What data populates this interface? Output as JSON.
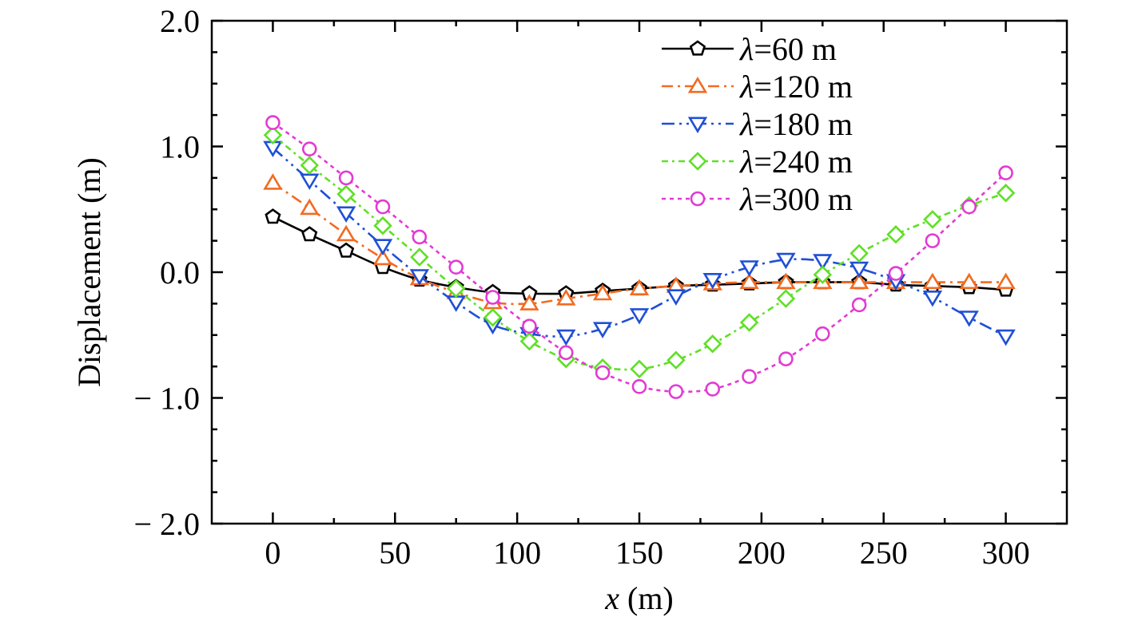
{
  "chart_data": {
    "type": "line",
    "title": "",
    "xlabel_var": "x",
    "xlabel_unit": " (m)",
    "ylabel": "Displacement (m)",
    "xlim": [
      -25,
      325
    ],
    "ylim": [
      -2.0,
      2.0
    ],
    "x_ticks": [
      0,
      50,
      100,
      150,
      200,
      250,
      300
    ],
    "x_tick_labels": [
      "0",
      "50",
      "100",
      "150",
      "200",
      "250",
      "300"
    ],
    "y_ticks": [
      -2.0,
      -1.0,
      0.0,
      1.0,
      2.0
    ],
    "y_tick_labels": [
      "− 2.0",
      "− 1.0",
      "0.0",
      "1.0",
      "2.0"
    ],
    "grid": false,
    "legend_position": "top-right",
    "x": [
      0,
      15,
      30,
      45,
      60,
      75,
      90,
      105,
      120,
      135,
      150,
      165,
      180,
      195,
      210,
      225,
      240,
      255,
      270,
      285,
      300
    ],
    "series": [
      {
        "name": "λ=60 m",
        "legend_symbol": "λ",
        "legend_value": "=60 m",
        "color": "#000000",
        "marker": "pentagon",
        "dash": "",
        "values": [
          0.44,
          0.3,
          0.17,
          0.04,
          -0.06,
          -0.12,
          -0.16,
          -0.17,
          -0.17,
          -0.15,
          -0.13,
          -0.11,
          -0.1,
          -0.09,
          -0.08,
          -0.08,
          -0.08,
          -0.1,
          -0.11,
          -0.12,
          -0.14
        ]
      },
      {
        "name": "λ=120 m",
        "legend_symbol": "λ",
        "legend_value": "=120 m",
        "color": "#f26b21",
        "marker": "triangle-up",
        "dash": "14,6,3,6",
        "values": [
          0.71,
          0.51,
          0.3,
          0.11,
          -0.05,
          -0.16,
          -0.24,
          -0.25,
          -0.21,
          -0.17,
          -0.13,
          -0.11,
          -0.09,
          -0.08,
          -0.08,
          -0.08,
          -0.08,
          -0.08,
          -0.08,
          -0.08,
          -0.08
        ]
      },
      {
        "name": "λ=180 m",
        "legend_symbol": "λ",
        "legend_value": "=180 m",
        "color": "#1f4fd6",
        "marker": "triangle-down",
        "dash": "16,6,3,6,3,6",
        "values": [
          0.99,
          0.73,
          0.47,
          0.21,
          -0.03,
          -0.24,
          -0.42,
          -0.49,
          -0.51,
          -0.45,
          -0.34,
          -0.19,
          -0.06,
          0.04,
          0.1,
          0.09,
          0.03,
          -0.07,
          -0.2,
          -0.36,
          -0.51
        ]
      },
      {
        "name": "λ=240 m",
        "legend_symbol": "λ",
        "legend_value": "=240 m",
        "color": "#5fe026",
        "marker": "diamond",
        "dash": "8,5,3,5",
        "values": [
          1.09,
          0.85,
          0.62,
          0.37,
          0.12,
          -0.13,
          -0.36,
          -0.55,
          -0.69,
          -0.76,
          -0.77,
          -0.7,
          -0.57,
          -0.4,
          -0.21,
          -0.02,
          0.15,
          0.3,
          0.42,
          0.53,
          0.63
        ]
      },
      {
        "name": "λ=300 m",
        "legend_symbol": "λ",
        "legend_value": "=300 m",
        "color": "#e23bd2",
        "marker": "circle",
        "dash": "5,5",
        "values": [
          1.19,
          0.98,
          0.75,
          0.52,
          0.28,
          0.04,
          -0.2,
          -0.43,
          -0.64,
          -0.8,
          -0.91,
          -0.95,
          -0.93,
          -0.83,
          -0.69,
          -0.49,
          -0.26,
          -0.01,
          0.25,
          0.52,
          0.79
        ]
      }
    ]
  }
}
